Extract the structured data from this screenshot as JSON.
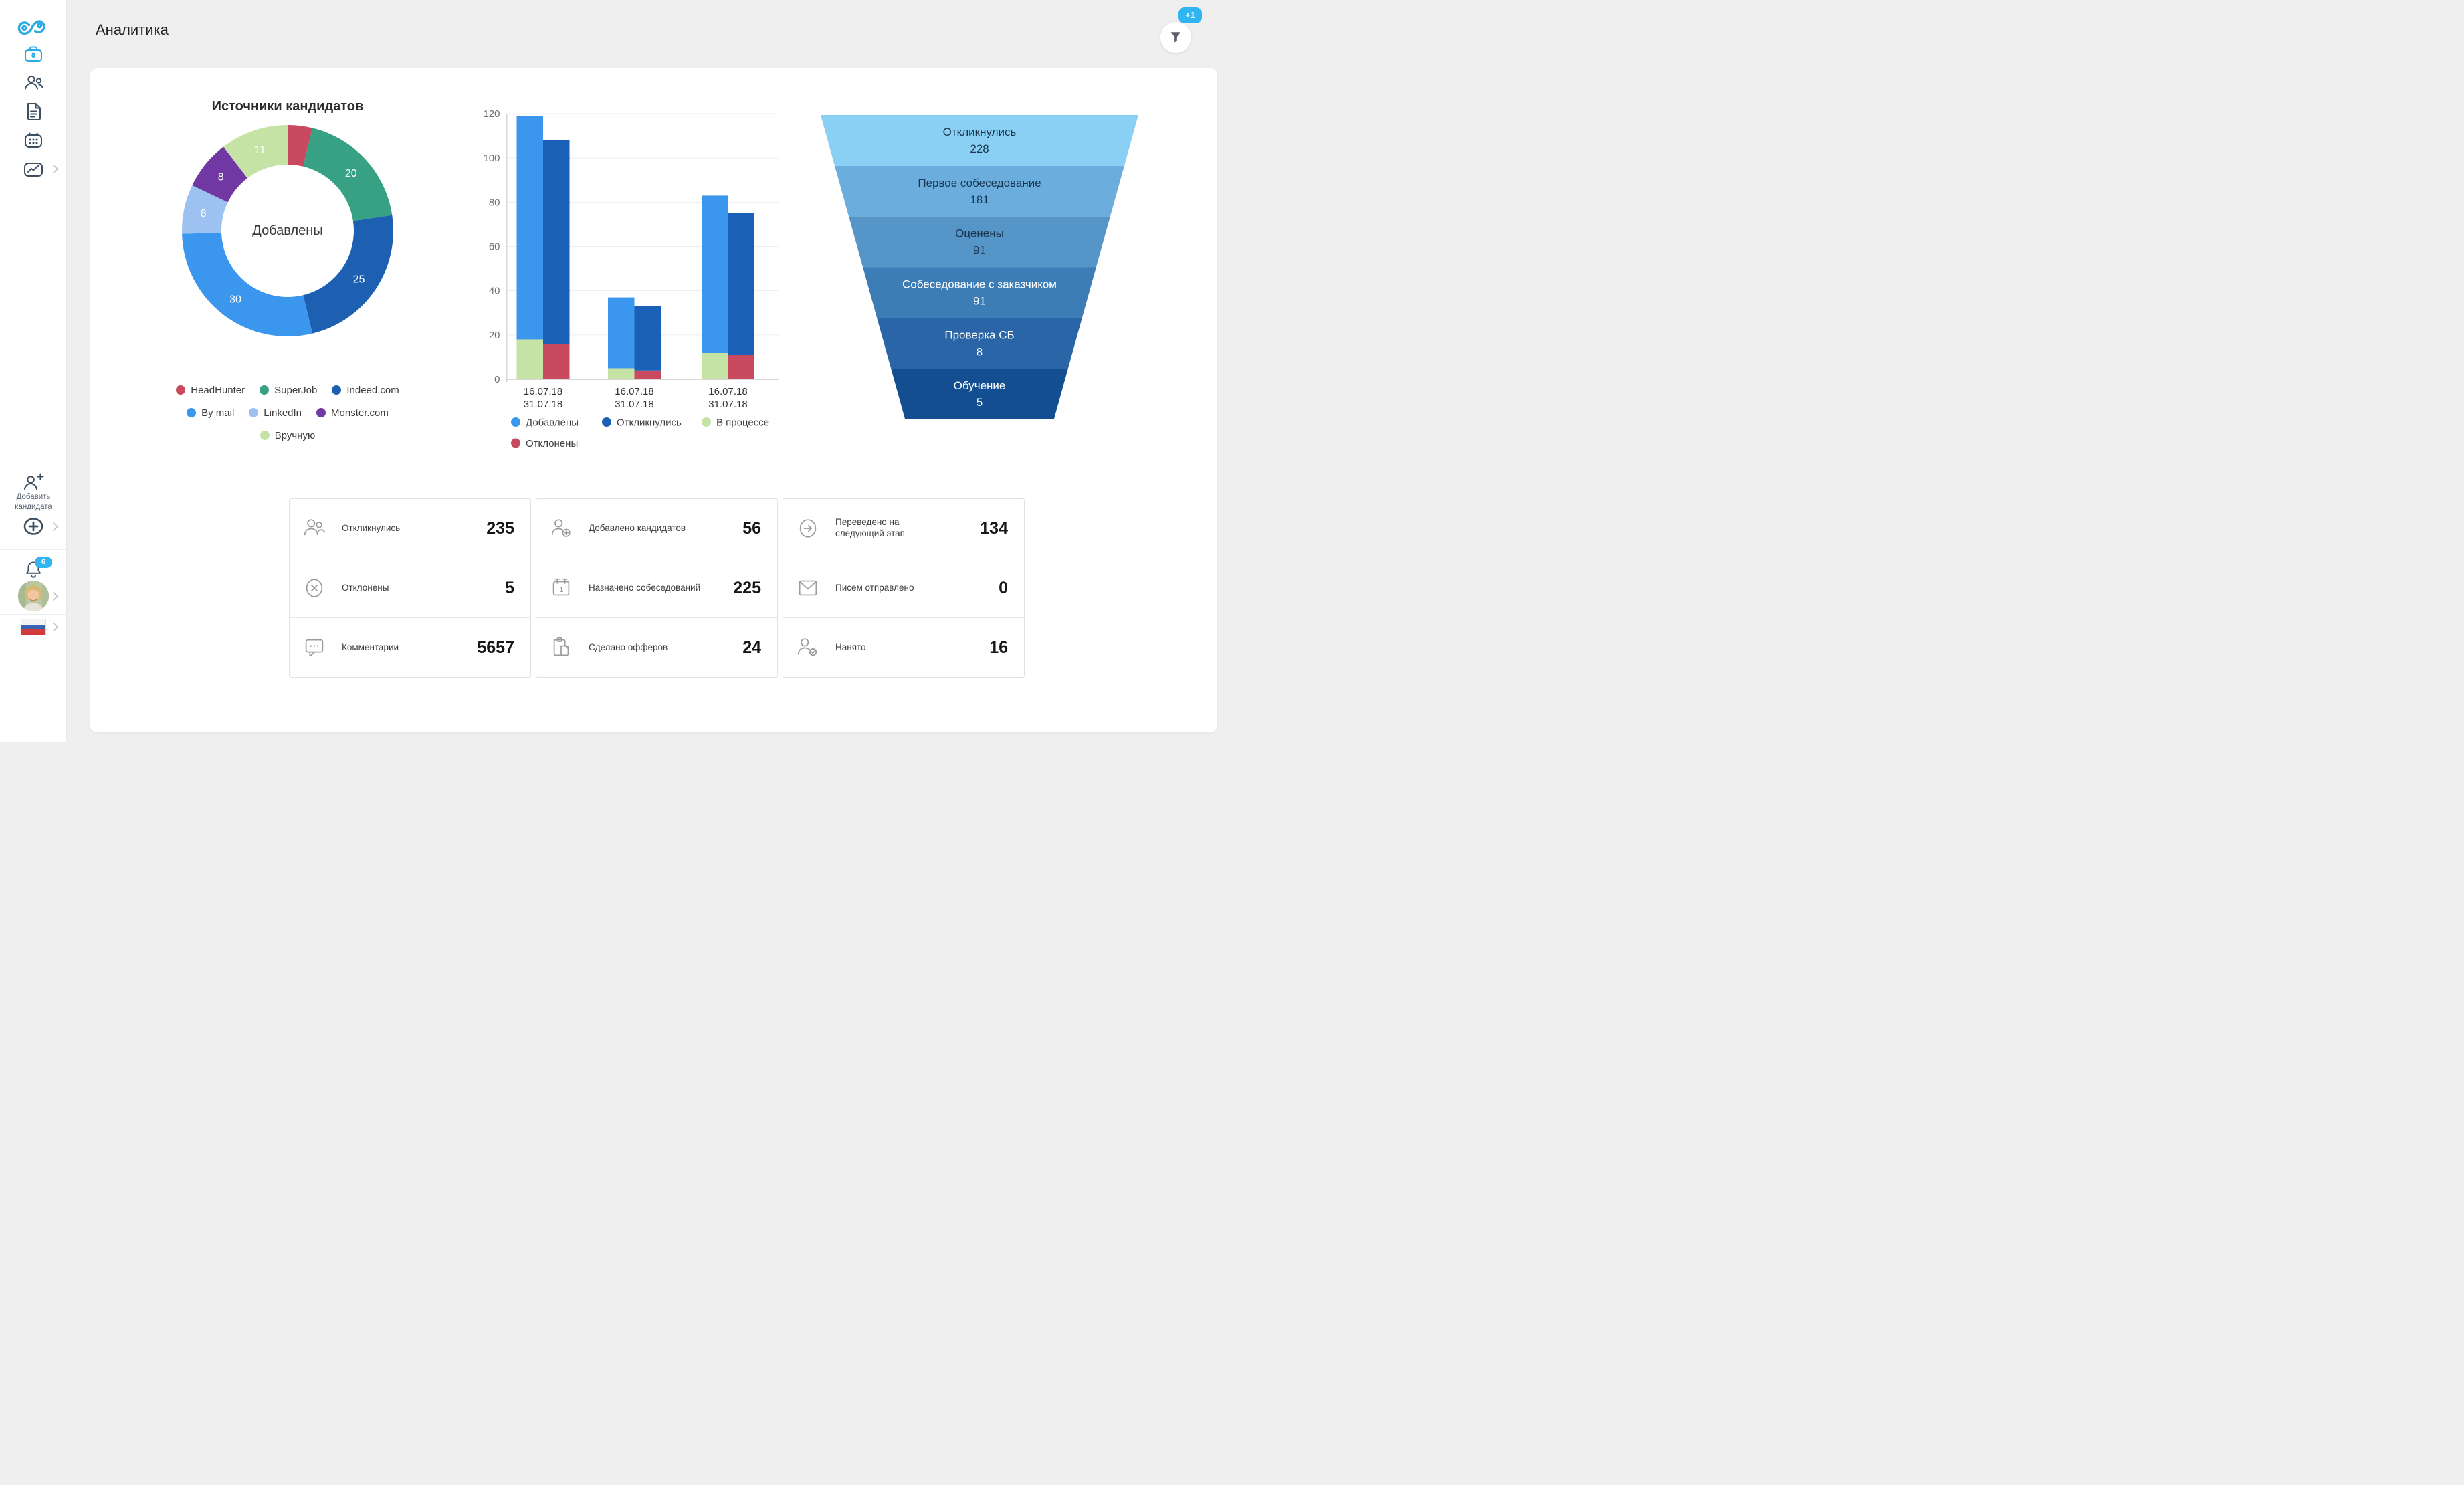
{
  "header": {
    "title": "Аналитика",
    "filter_badge": "+1"
  },
  "sidebar": {
    "logo_icon": "logo-swirl-icon",
    "nav_icons": [
      "briefcase-icon",
      "people-icon",
      "document-icon",
      "calendar-icon",
      "analytics-icon"
    ],
    "add_candidate_label": "Добавить кандидата",
    "notifications_count": "6",
    "language_flag": "russian-flag"
  },
  "donut": {
    "title": "Источники кандидатов",
    "center_label": "Добавлены",
    "segments": [
      {
        "label": "HeadHunter",
        "value": 4,
        "color": "#C94A5E",
        "show_value": false
      },
      {
        "label": "SuperJob",
        "value": 20,
        "color": "#38A184",
        "show_value": true
      },
      {
        "label": "Indeed.com",
        "value": 25,
        "color": "#1D60B1",
        "show_value": true
      },
      {
        "label": "By mail",
        "value": 30,
        "color": "#3B96EE",
        "show_value": true
      },
      {
        "label": "LinkedIn",
        "value": 8,
        "color": "#9DC2F1",
        "show_value": true
      },
      {
        "label": "Monster.com",
        "value": 8,
        "color": "#7138A4",
        "show_value": true
      },
      {
        "label": "Вручную",
        "value": 11,
        "color": "#C5E3A5",
        "show_value": true
      }
    ]
  },
  "bar_chart": {
    "ylim": [
      0,
      120
    ],
    "y_ticks": [
      0,
      20,
      40,
      60,
      80,
      100,
      120
    ],
    "x_labels": [
      [
        "16.07.18",
        "31.07.18"
      ],
      [
        "16.07.18",
        "31.07.18"
      ],
      [
        "16.07.18",
        "31.07.18"
      ]
    ],
    "groups": [
      {
        "bar1": [
          {
            "name": "В процессе",
            "value": 18
          },
          {
            "name": "Добавлены",
            "value": 101
          }
        ],
        "bar2": [
          {
            "name": "Отклонены",
            "value": 16
          },
          {
            "name": "Откликнулись",
            "value": 92
          }
        ]
      },
      {
        "bar1": [
          {
            "name": "В процессе",
            "value": 5
          },
          {
            "name": "Добавлены",
            "value": 32
          }
        ],
        "bar2": [
          {
            "name": "Отклонены",
            "value": 4
          },
          {
            "name": "Откликнулись",
            "value": 29
          }
        ]
      },
      {
        "bar1": [
          {
            "name": "В процессе",
            "value": 12
          },
          {
            "name": "Добавлены",
            "value": 71
          }
        ],
        "bar2": [
          {
            "name": "Отклонены",
            "value": 11
          },
          {
            "name": "Откликнулись",
            "value": 64
          }
        ]
      }
    ],
    "series_colors": {
      "Добавлены": "#3B96EE",
      "Откликнулись": "#1A60B6",
      "В процессе": "#C5E3A5",
      "Отклонены": "#C94A5E"
    },
    "legend": [
      {
        "label": "Добавлены",
        "color": "#3B96EE"
      },
      {
        "label": "Откликнулись",
        "color": "#1A60B6"
      },
      {
        "label": "В процессе",
        "color": "#C5E3A5"
      },
      {
        "label": "Отклонены",
        "color": "#C94A5E"
      }
    ]
  },
  "funnel": {
    "stages": [
      {
        "label": "Откликнулись",
        "value": 228,
        "color": "#8AD0F4",
        "text_color": "#18344F"
      },
      {
        "label": "Первое собеседование",
        "value": 181,
        "color": "#6BAEDD",
        "text_color": "#18344F"
      },
      {
        "label": "Оценены",
        "value": 91,
        "color": "#5595C8",
        "text_color": "#18344F"
      },
      {
        "label": "Собеседование с заказчиком",
        "value": 91,
        "color": "#3C7DB6",
        "text_color": "#FFFFFF"
      },
      {
        "label": "Проверка СБ",
        "value": 8,
        "color": "#2A65A8",
        "text_color": "#FFFFFF"
      },
      {
        "label": "Обучение",
        "value": 5,
        "color": "#134F90",
        "text_color": "#FFFFFF"
      }
    ]
  },
  "stats": {
    "columns": [
      [
        {
          "icon": "people-icon",
          "label": "Откликнулись",
          "value": "235"
        },
        {
          "icon": "cross-circle-icon",
          "label": "Отклонены",
          "value": "5"
        },
        {
          "icon": "comment-icon",
          "label": "Комментарии",
          "value": "5657"
        }
      ],
      [
        {
          "icon": "person-plus-icon",
          "label": "Добавлено кандидатов",
          "value": "56"
        },
        {
          "icon": "calendar-one-icon",
          "label": "Назначено собеседований",
          "value": "225"
        },
        {
          "icon": "clipboard-icon",
          "label": "Сделано офферов",
          "value": "24"
        }
      ],
      [
        {
          "icon": "arrow-right-circle-icon",
          "label": "Переведено на следующий этап",
          "value": "134"
        },
        {
          "icon": "envelope-icon",
          "label": "Писем отправлено",
          "value": "0"
        },
        {
          "icon": "person-check-icon",
          "label": "Нанято",
          "value": "16"
        }
      ]
    ]
  }
}
